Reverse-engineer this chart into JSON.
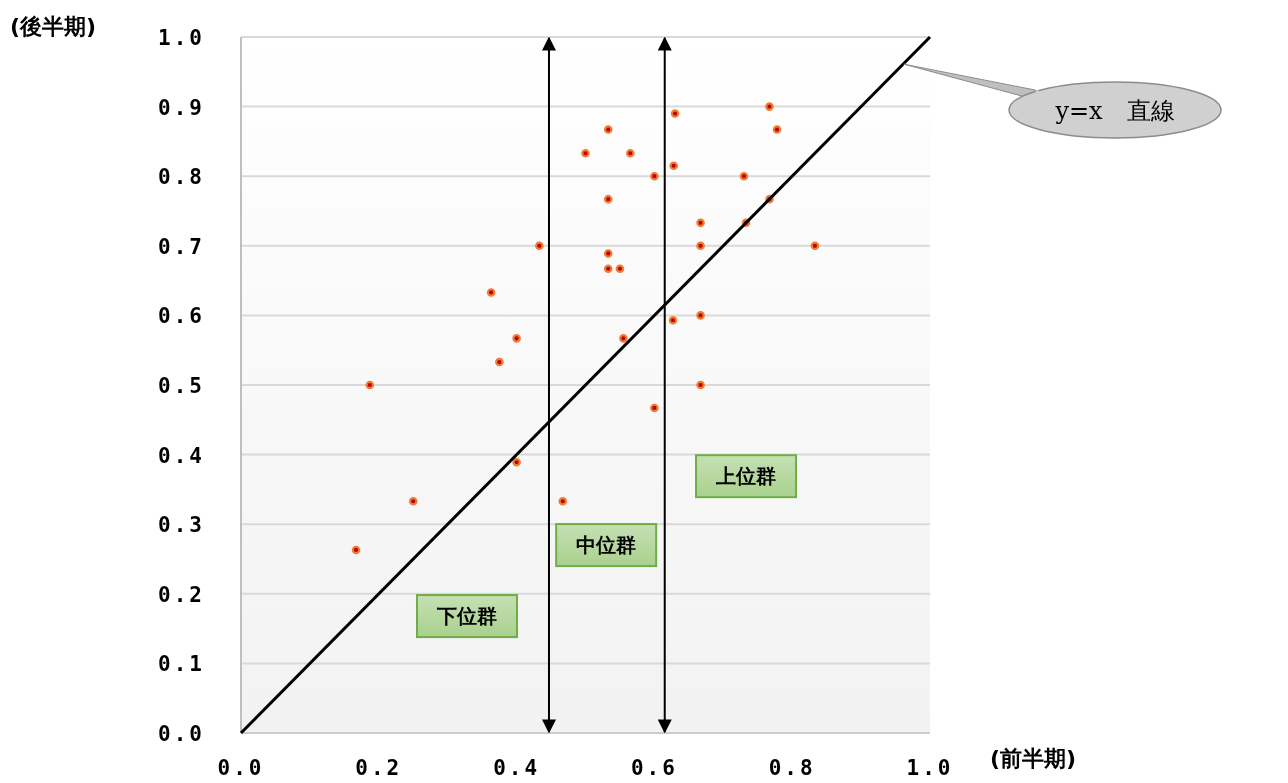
{
  "chart_data": {
    "type": "scatter",
    "xlabel": "(前半期)",
    "ylabel": "(後半期)",
    "xlim": [
      0,
      1
    ],
    "ylim": [
      0,
      1
    ],
    "xticks": [
      {
        "value": 0,
        "label": "0.0"
      },
      {
        "value": 0.2,
        "label": "0.2"
      },
      {
        "value": 0.4,
        "label": "0.4"
      },
      {
        "value": 0.6,
        "label": "0.6"
      },
      {
        "value": 0.8,
        "label": "0.8"
      },
      {
        "value": 1,
        "label": "1.0"
      }
    ],
    "yticks": [
      {
        "value": 0,
        "label": "0.0"
      },
      {
        "value": 0.1,
        "label": "0.1"
      },
      {
        "value": 0.2,
        "label": "0.2"
      },
      {
        "value": 0.3,
        "label": "0.3"
      },
      {
        "value": 0.4,
        "label": "0.4"
      },
      {
        "value": 0.5,
        "label": "0.5"
      },
      {
        "value": 0.6,
        "label": "0.6"
      },
      {
        "value": 0.7,
        "label": "0.7"
      },
      {
        "value": 0.8,
        "label": "0.8"
      },
      {
        "value": 0.9,
        "label": "0.9"
      },
      {
        "value": 1,
        "label": "1.0"
      }
    ],
    "grid": "y",
    "series": [
      {
        "marker": "circle",
        "color": "#ed7d31",
        "x": [
          0.187,
          0.167,
          0.25,
          0.363,
          0.375,
          0.4,
          0.4,
          0.433,
          0.467,
          0.5,
          0.533,
          0.533,
          0.533,
          0.533,
          0.55,
          0.565,
          0.555,
          0.6,
          0.6,
          0.628,
          0.63,
          0.627,
          0.667,
          0.667,
          0.667,
          0.667,
          0.73,
          0.733,
          0.767,
          0.767,
          0.778,
          0.833
        ],
        "values": [
          0.5,
          0.263,
          0.333,
          0.633,
          0.533,
          0.567,
          0.389,
          0.7,
          0.333,
          0.833,
          0.867,
          0.767,
          0.689,
          0.667,
          0.667,
          0.833,
          0.567,
          0.8,
          0.467,
          0.815,
          0.89,
          0.593,
          0.733,
          0.7,
          0.6,
          0.5,
          0.8,
          0.733,
          0.9,
          0.767,
          0.867,
          0.7
        ]
      },
      {
        "type": "line",
        "marker": "none",
        "color": "#000000",
        "x": [
          0,
          1
        ],
        "values": [
          0,
          1
        ]
      }
    ],
    "ref_lines": [
      {
        "axis": "x",
        "value": 0.447,
        "color": "#000000"
      },
      {
        "axis": "x",
        "value": 0.615,
        "color": "#000000"
      }
    ],
    "annotations": [
      "下位群",
      "中位群",
      "上位群",
      {
        "text": "y=x　直線",
        "x": 0.962,
        "y": 0.961
      }
    ]
  }
}
